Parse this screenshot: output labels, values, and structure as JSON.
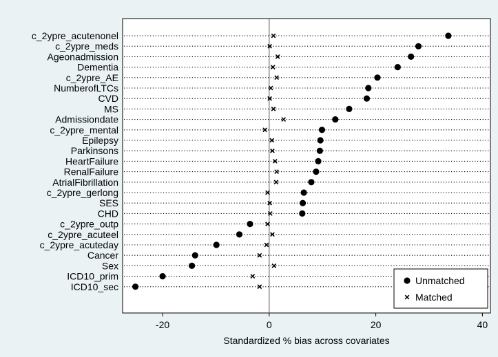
{
  "chart_data": {
    "type": "scatter",
    "title": "",
    "xlabel": "Standardized % bias across covariates",
    "ylabel": "",
    "xlim": [
      -27.5,
      41.5
    ],
    "xticks": [
      -20,
      0,
      20,
      40
    ],
    "xtick_labels": [
      "-20",
      "0",
      "20",
      "40"
    ],
    "grid": "dotted horizontal lines per covariate",
    "reference_line_x": 0,
    "legend_position": "bottom-right",
    "categories": [
      "c_2ypre_acutenonel",
      "c_2ypre_meds",
      "Ageonadmission",
      "Dementia",
      "c_2ypre_AE",
      "NumberofLTCs",
      "CVD",
      "MS",
      "Admissiondate",
      "c_2ypre_mental",
      "Epilepsy",
      "Parkinsons",
      "HeartFailure",
      "RenalFailure",
      "AtrialFibrillation",
      "c_2ypre_gerlong",
      "SES",
      "CHD",
      "c_2ypre_outp",
      "c_2ypre_acuteel",
      "c_2ypre_acuteday",
      "Cancer",
      "Sex",
      "ICD10_prim",
      "ICD10_sec"
    ],
    "series": [
      {
        "name": "Unmatched",
        "marker": "circle",
        "color": "#000000",
        "values": [
          33.6,
          28.0,
          26.6,
          24.1,
          20.3,
          18.6,
          18.3,
          15.0,
          12.4,
          9.9,
          9.6,
          9.5,
          9.2,
          8.8,
          7.9,
          6.5,
          6.3,
          6.2,
          -3.6,
          -5.6,
          -9.9,
          -13.9,
          -14.5,
          -20.0,
          -25.1
        ]
      },
      {
        "name": "Matched",
        "marker": "x",
        "color": "#000000",
        "values": [
          0.8,
          0.1,
          1.6,
          0.7,
          1.4,
          0.3,
          0.1,
          0.8,
          2.7,
          -0.8,
          0.5,
          0.6,
          1.1,
          1.4,
          1.3,
          -0.3,
          0.1,
          0.2,
          -0.3,
          0.6,
          -0.5,
          -1.8,
          0.9,
          -3.1,
          -1.8
        ]
      }
    ]
  },
  "colors": {
    "background": "#eaf2f3",
    "plot_area": "#ffffff",
    "marks": "#000000"
  }
}
